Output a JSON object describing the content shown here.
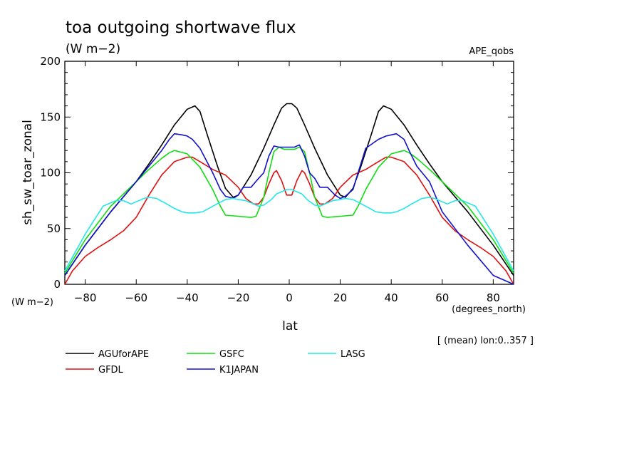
{
  "header": {
    "title": "toa outgoing shortwave flux",
    "units": "(W m−2)",
    "dataset": "APE_qobs"
  },
  "axis_notes": {
    "y_units": "(W m−2)",
    "x_units": "(degrees_north)",
    "averaging": "[ (mean) lon:0..357 ]"
  },
  "chart_data": {
    "type": "line",
    "title": "toa outgoing shortwave flux",
    "xlabel": "lat",
    "ylabel": "sh_sw_toar_zonal",
    "xlim": [
      -88,
      88
    ],
    "ylim": [
      0,
      200
    ],
    "xticks": [
      -80,
      -60,
      -40,
      -20,
      0,
      20,
      40,
      60,
      80
    ],
    "yticks": [
      0,
      50,
      100,
      150,
      200
    ],
    "legend_position": "bottom",
    "series": [
      {
        "name": "AGUforAPE",
        "color": "#000000",
        "x": [
          -88,
          -80,
          -70,
          -60,
          -55,
          -50,
          -45,
          -40,
          -37,
          -35,
          -32,
          -28,
          -25,
          -22,
          -20,
          -15,
          -10,
          -6,
          -3,
          -1,
          1,
          3,
          6,
          10,
          15,
          20,
          22,
          25,
          28,
          32,
          35,
          37,
          40,
          45,
          50,
          55,
          60,
          70,
          80,
          88
        ],
        "y": [
          8,
          35,
          65,
          92,
          108,
          125,
          143,
          157,
          160,
          155,
          133,
          105,
          86,
          78,
          80,
          98,
          122,
          143,
          158,
          162,
          162,
          158,
          143,
          122,
          98,
          80,
          78,
          86,
          105,
          133,
          155,
          160,
          157,
          143,
          125,
          108,
          92,
          65,
          35,
          8
        ]
      },
      {
        "name": "GFDL",
        "color": "#dd1111",
        "x": [
          -88,
          -85,
          -80,
          -75,
          -70,
          -65,
          -60,
          -55,
          -50,
          -45,
          -40,
          -38,
          -35,
          -30,
          -25,
          -20,
          -17,
          -14,
          -12,
          -10,
          -8,
          -6,
          -5,
          -3,
          -1,
          1,
          3,
          5,
          6,
          8,
          10,
          12,
          14,
          17,
          20,
          25,
          30,
          35,
          38,
          40,
          45,
          50,
          55,
          60,
          65,
          70,
          75,
          80,
          85,
          88
        ],
        "y": [
          0,
          12,
          25,
          33,
          40,
          48,
          60,
          80,
          98,
          110,
          114,
          114,
          110,
          103,
          98,
          87,
          77,
          72,
          72,
          78,
          90,
          100,
          102,
          93,
          80,
          80,
          93,
          102,
          100,
          90,
          78,
          72,
          72,
          77,
          87,
          98,
          103,
          110,
          114,
          114,
          110,
          98,
          80,
          60,
          48,
          40,
          33,
          25,
          12,
          0
        ]
      },
      {
        "name": "GSFC",
        "color": "#11dd11",
        "x": [
          -88,
          -80,
          -70,
          -60,
          -55,
          -50,
          -47,
          -45,
          -40,
          -35,
          -30,
          -27,
          -25,
          -20,
          -15,
          -13,
          -10,
          -8,
          -6,
          -4,
          -2,
          0,
          2,
          4,
          6,
          8,
          10,
          13,
          15,
          20,
          25,
          27,
          30,
          35,
          40,
          45,
          47,
          50,
          55,
          60,
          70,
          80,
          88
        ],
        "y": [
          10,
          40,
          70,
          92,
          103,
          113,
          118,
          120,
          117,
          105,
          85,
          70,
          62,
          61,
          60,
          61,
          78,
          100,
          119,
          123,
          121,
          121,
          121,
          123,
          119,
          100,
          78,
          61,
          60,
          61,
          62,
          70,
          85,
          105,
          117,
          120,
          118,
          113,
          103,
          92,
          70,
          40,
          10
        ]
      },
      {
        "name": "K1JAPAN",
        "color": "#1111cc",
        "x": [
          -88,
          -80,
          -70,
          -60,
          -55,
          -50,
          -47,
          -45,
          -42,
          -40,
          -38,
          -35,
          -30,
          -27,
          -25,
          -22,
          -20,
          -18,
          -15,
          -12,
          -10,
          -8,
          -6,
          -4,
          -2,
          0,
          2,
          4,
          6,
          8,
          10,
          12,
          15,
          18,
          20,
          22,
          25,
          27,
          30,
          35,
          38,
          40,
          42,
          45,
          47,
          50,
          55,
          60,
          70,
          80,
          88
        ],
        "y": [
          8,
          35,
          65,
          92,
          106,
          120,
          130,
          135,
          134,
          133,
          130,
          122,
          100,
          85,
          79,
          77,
          80,
          87,
          87,
          95,
          100,
          115,
          124,
          123,
          123,
          123,
          123,
          125,
          115,
          100,
          95,
          87,
          87,
          80,
          77,
          79,
          85,
          100,
          122,
          130,
          133,
          134,
          135,
          130,
          120,
          106,
          92,
          65,
          35,
          8,
          0
        ]
      },
      {
        "name": "LASG",
        "color": "#22e8e8",
        "x": [
          -88,
          -80,
          -73,
          -68,
          -65,
          -62,
          -60,
          -57,
          -55,
          -52,
          -48,
          -45,
          -42,
          -40,
          -37,
          -34,
          -30,
          -25,
          -22,
          -20,
          -17,
          -14,
          -12,
          -10,
          -7,
          -5,
          -3,
          -1,
          0,
          1,
          3,
          5,
          7,
          10,
          12,
          14,
          17,
          20,
          22,
          25,
          30,
          34,
          37,
          40,
          42,
          45,
          48,
          52,
          55,
          57,
          60,
          62,
          65,
          68,
          73,
          80,
          88
        ],
        "y": [
          12,
          45,
          70,
          75,
          75,
          72,
          74,
          77,
          78,
          77,
          72,
          68,
          65,
          64,
          64,
          65,
          70,
          76,
          77,
          76,
          75,
          72,
          70,
          71,
          76,
          81,
          83,
          85,
          85,
          85,
          83,
          81,
          76,
          71,
          70,
          72,
          75,
          76,
          77,
          76,
          70,
          65,
          64,
          64,
          65,
          68,
          72,
          77,
          78,
          77,
          74,
          72,
          75,
          75,
          70,
          45,
          12
        ]
      }
    ]
  }
}
